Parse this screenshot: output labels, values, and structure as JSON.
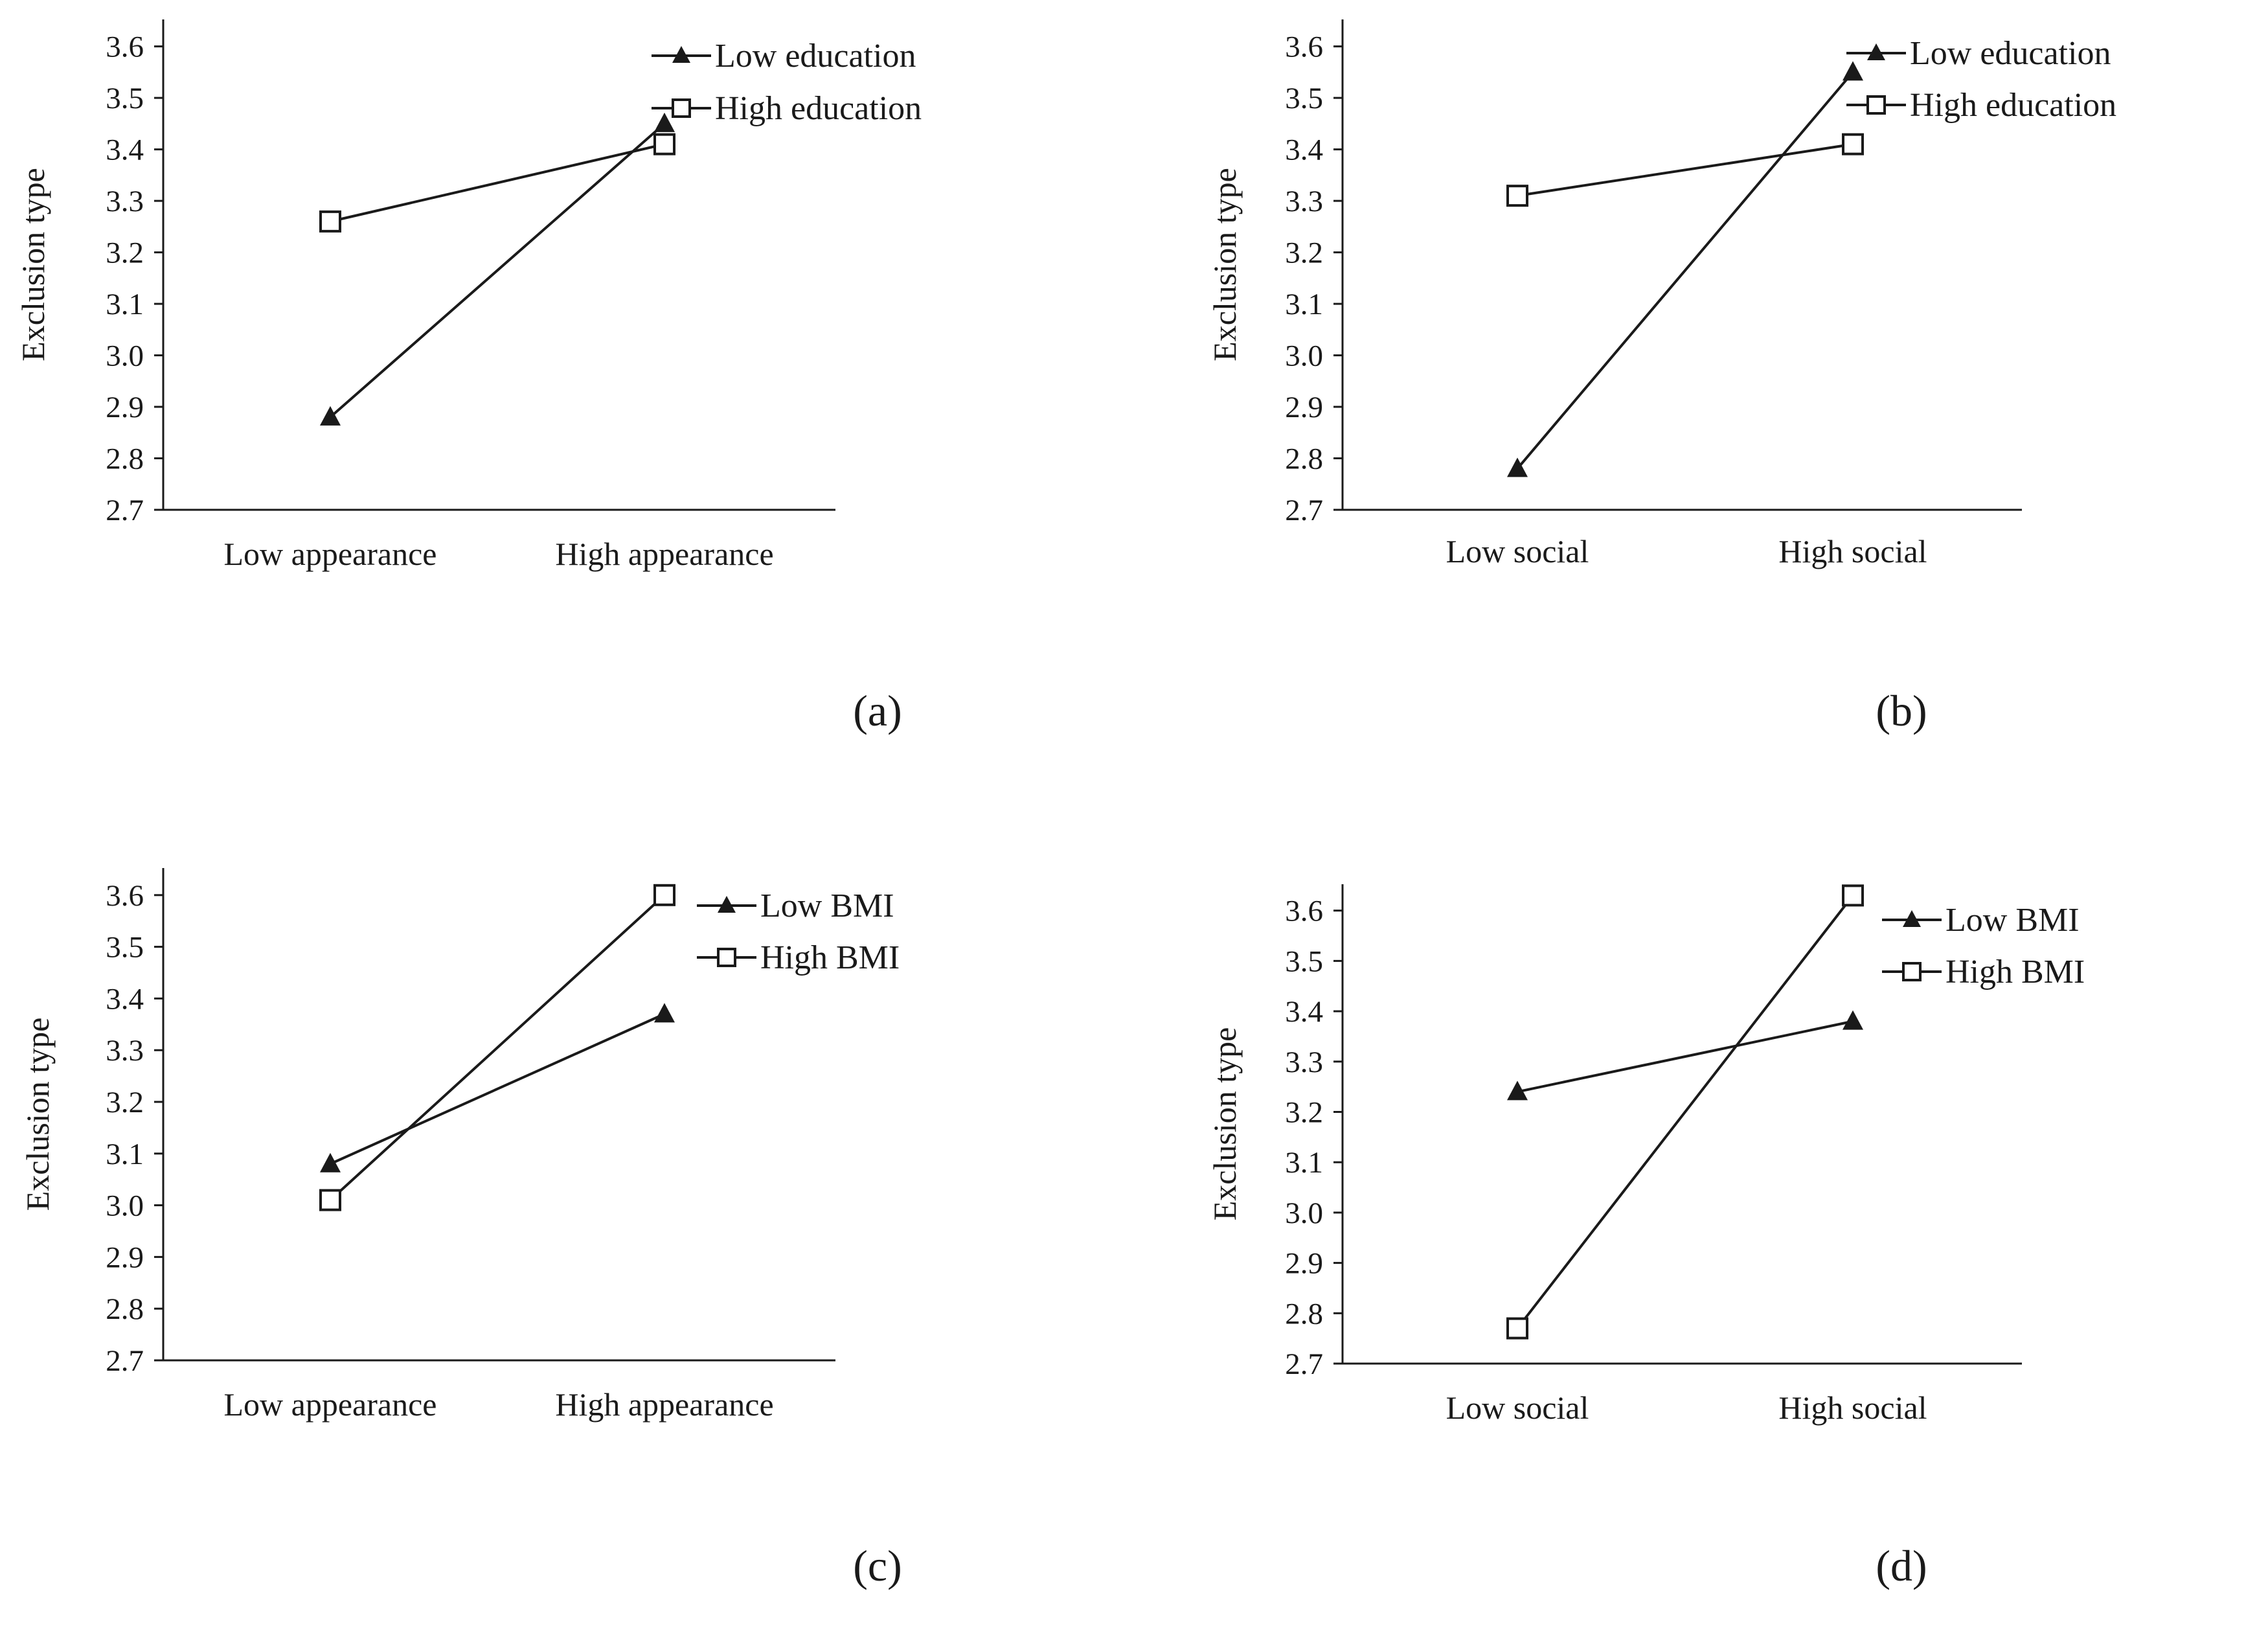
{
  "chart_data": [
    {
      "type": "line",
      "panel_label": "(a)",
      "ylabel": "Exclusion type",
      "categories": [
        "Low appearance",
        "High appearance"
      ],
      "ylim": [
        2.7,
        3.6
      ],
      "yticks": [
        "2.7",
        "2.8",
        "2.9",
        "3.0",
        "3.1",
        "3.2",
        "3.3",
        "3.4",
        "3.5",
        "3.6"
      ],
      "grid": false,
      "legend_position": "top-right",
      "series": [
        {
          "name": "Low education",
          "marker": "filled-triangle",
          "values": [
            2.88,
            3.45
          ]
        },
        {
          "name": "High education",
          "marker": "open-square",
          "values": [
            3.26,
            3.41
          ]
        }
      ]
    },
    {
      "type": "line",
      "panel_label": "(b)",
      "ylabel": "Exclusion type",
      "categories": [
        "Low social",
        "High social"
      ],
      "ylim": [
        2.7,
        3.6
      ],
      "yticks": [
        "2.7",
        "2.8",
        "2.9",
        "3.0",
        "3.1",
        "3.2",
        "3.3",
        "3.4",
        "3.5",
        "3.6"
      ],
      "grid": false,
      "legend_position": "top-right",
      "series": [
        {
          "name": "Low education",
          "marker": "filled-triangle",
          "values": [
            2.78,
            3.55
          ]
        },
        {
          "name": "High education",
          "marker": "open-square",
          "values": [
            3.31,
            3.41
          ]
        }
      ]
    },
    {
      "type": "line",
      "panel_label": "(c)",
      "ylabel": "Exclusion type",
      "categories": [
        "Low appearance",
        "High appearance"
      ],
      "ylim": [
        2.7,
        3.6
      ],
      "yticks": [
        "2.7",
        "2.8",
        "2.9",
        "3.0",
        "3.1",
        "3.2",
        "3.3",
        "3.4",
        "3.5",
        "3.6"
      ],
      "grid": false,
      "legend_position": "top-right",
      "series": [
        {
          "name": "Low BMI",
          "marker": "filled-triangle",
          "values": [
            3.08,
            3.37
          ]
        },
        {
          "name": "High BMI",
          "marker": "open-square",
          "values": [
            3.01,
            3.6
          ]
        }
      ]
    },
    {
      "type": "line",
      "panel_label": "(d)",
      "ylabel": "Exclusion type",
      "categories": [
        "Low social",
        "High social"
      ],
      "ylim": [
        2.7,
        3.6
      ],
      "yticks": [
        "2.7",
        "2.8",
        "2.9",
        "3.0",
        "3.1",
        "3.2",
        "3.3",
        "3.4",
        "3.5",
        "3.6"
      ],
      "grid": false,
      "legend_position": "top-right",
      "series": [
        {
          "name": "Low BMI",
          "marker": "filled-triangle",
          "values": [
            3.24,
            3.38
          ]
        },
        {
          "name": "High BMI",
          "marker": "open-square",
          "values": [
            2.77,
            3.63
          ]
        }
      ]
    }
  ]
}
